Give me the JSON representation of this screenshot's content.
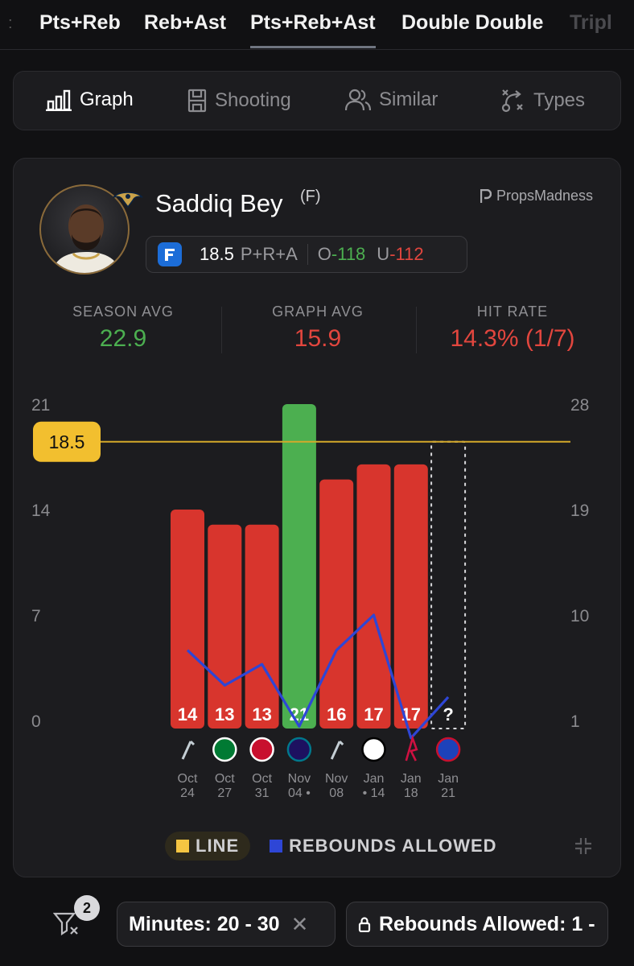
{
  "tabs": [
    {
      "label": "Pts+Reb",
      "active": false
    },
    {
      "label": "Reb+Ast",
      "active": false
    },
    {
      "label": "Pts+Reb+Ast",
      "active": true
    },
    {
      "label": "Double Double",
      "active": false
    },
    {
      "label": "Tripl",
      "active": false
    }
  ],
  "views": [
    {
      "label": "Graph",
      "icon": "bar-chart-icon",
      "active": true
    },
    {
      "label": "Shooting",
      "icon": "court-icon",
      "active": false
    },
    {
      "label": "Similar",
      "icon": "users-icon",
      "active": false
    },
    {
      "label": "Types",
      "icon": "play-diagram-icon",
      "active": false
    }
  ],
  "player": {
    "name": "Saddiq Bey",
    "position": "(F)",
    "team_logo": "pelicans-logo-icon"
  },
  "brand": "PropsMadness",
  "prop": {
    "book_icon": "fanduel-icon",
    "line": "18.5",
    "market": "P+R+A",
    "over_label": "O",
    "over_odds": "-118",
    "under_label": "U",
    "under_odds": "-112"
  },
  "stats": {
    "season_avg_label": "SEASON AVG",
    "season_avg": "22.9",
    "graph_avg_label": "GRAPH AVG",
    "graph_avg": "15.9",
    "hit_rate_label": "HIT RATE",
    "hit_rate": "14.3% (1/7)"
  },
  "chart_data": {
    "type": "bar",
    "left_axis_ticks": [
      "21",
      "14",
      "7",
      "0"
    ],
    "right_axis_ticks": [
      "28",
      "19",
      "10",
      "1"
    ],
    "ylim": [
      0,
      21
    ],
    "y2lim": [
      1,
      28
    ],
    "line_value": 18.5,
    "line_label": "18.5",
    "categories": [
      {
        "month": "Oct",
        "day": "24",
        "opponent": "spurs-logo-icon",
        "dot": ""
      },
      {
        "month": "Oct",
        "day": "27",
        "opponent": "celtics-logo-icon",
        "dot": ""
      },
      {
        "month": "Oct",
        "day": "31",
        "opponent": "clippers-logo-icon",
        "dot": ""
      },
      {
        "month": "Nov",
        "day": "04",
        "opponent": "hornets-logo-icon",
        "dot": "after"
      },
      {
        "month": "Nov",
        "day": "08",
        "opponent": "spurs-logo-icon",
        "dot": ""
      },
      {
        "month": "Jan",
        "day": "14",
        "opponent": "nets-logo-icon",
        "dot": "before"
      },
      {
        "month": "Jan",
        "day": "18",
        "opponent": "rockets-logo-icon",
        "dot": ""
      },
      {
        "month": "Jan",
        "day": "21",
        "opponent": "pistons-logo-icon",
        "dot": ""
      }
    ],
    "values": [
      14,
      13,
      13,
      21,
      16,
      17,
      17,
      null
    ],
    "value_labels": [
      "14",
      "13",
      "13",
      "21",
      "16",
      "17",
      "17",
      "?"
    ],
    "bar_colors": [
      "#d8352d",
      "#d8352d",
      "#d8352d",
      "#4caf50",
      "#d8352d",
      "#d8352d",
      "#d8352d",
      "none"
    ],
    "series": [
      {
        "name": "REBOUNDS ALLOWED",
        "axis": "right",
        "color": "#2e46d6",
        "values": [
          7,
          4,
          5.8,
          0.5,
          7,
          10,
          -0.5,
          3
        ]
      }
    ],
    "legend": {
      "line_label": "LINE",
      "line_color": "#f5c542",
      "series_label": "REBOUNDS ALLOWED",
      "series_color": "#2e46d6"
    }
  },
  "filters": {
    "count": "2",
    "chips": [
      {
        "label": "Minutes: 20 - 30",
        "removable": true,
        "locked": false
      },
      {
        "label": "Rebounds Allowed: 1 -",
        "removable": false,
        "locked": true
      }
    ]
  }
}
